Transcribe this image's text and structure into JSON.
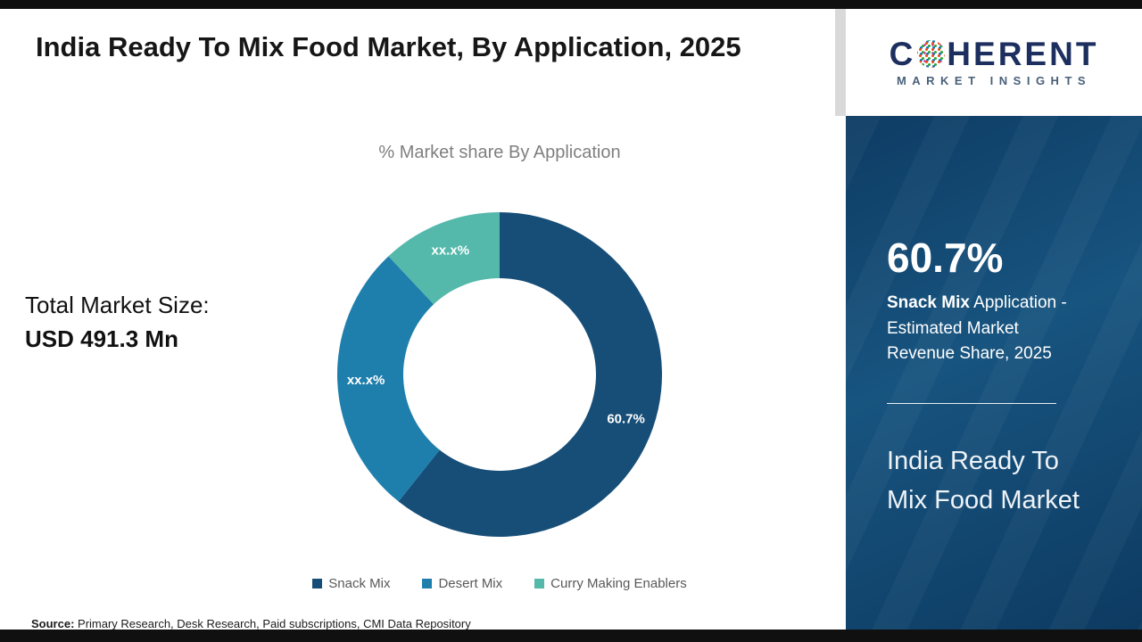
{
  "header": {
    "title": "India Ready To Mix Food Market, By Application, 2025"
  },
  "left_panel": {
    "total_label": "Total Market Size:",
    "total_value": "USD 491.3 Mn"
  },
  "chart_data": {
    "type": "pie",
    "subtype": "donut",
    "title": "% Market share By Application",
    "categories": [
      "Snack Mix",
      "Desert Mix",
      "Curry Making Enablers"
    ],
    "values": [
      60.7,
      27.3,
      12.0
    ],
    "value_labels": [
      "60.7%",
      "xx.x%",
      "xx.x%"
    ],
    "colors": [
      "#174e78",
      "#1e7fad",
      "#54b8ab"
    ],
    "legend_position": "bottom",
    "start_angle_deg": 0,
    "direction": "clockwise"
  },
  "sidebar": {
    "stat_value": "60.7%",
    "stat_desc_bold": "Snack Mix",
    "stat_desc_rest": " Application - Estimated Market Revenue Share, 2025",
    "market_name": "India Ready To Mix Food Market"
  },
  "brand": {
    "name_prefix": "C",
    "name_suffix": "HERENT",
    "tagline": "MARKET INSIGHTS"
  },
  "footer": {
    "source_label": "Source:",
    "source_text": "Primary Research, Desk Research, Paid subscriptions, CMI Data Repository"
  },
  "theme": {
    "bar_color": "#101010",
    "sidebar_bg": "#12436b",
    "logo_text_color": "#1c2f5f",
    "subtitle_color": "#7f7f7f"
  }
}
